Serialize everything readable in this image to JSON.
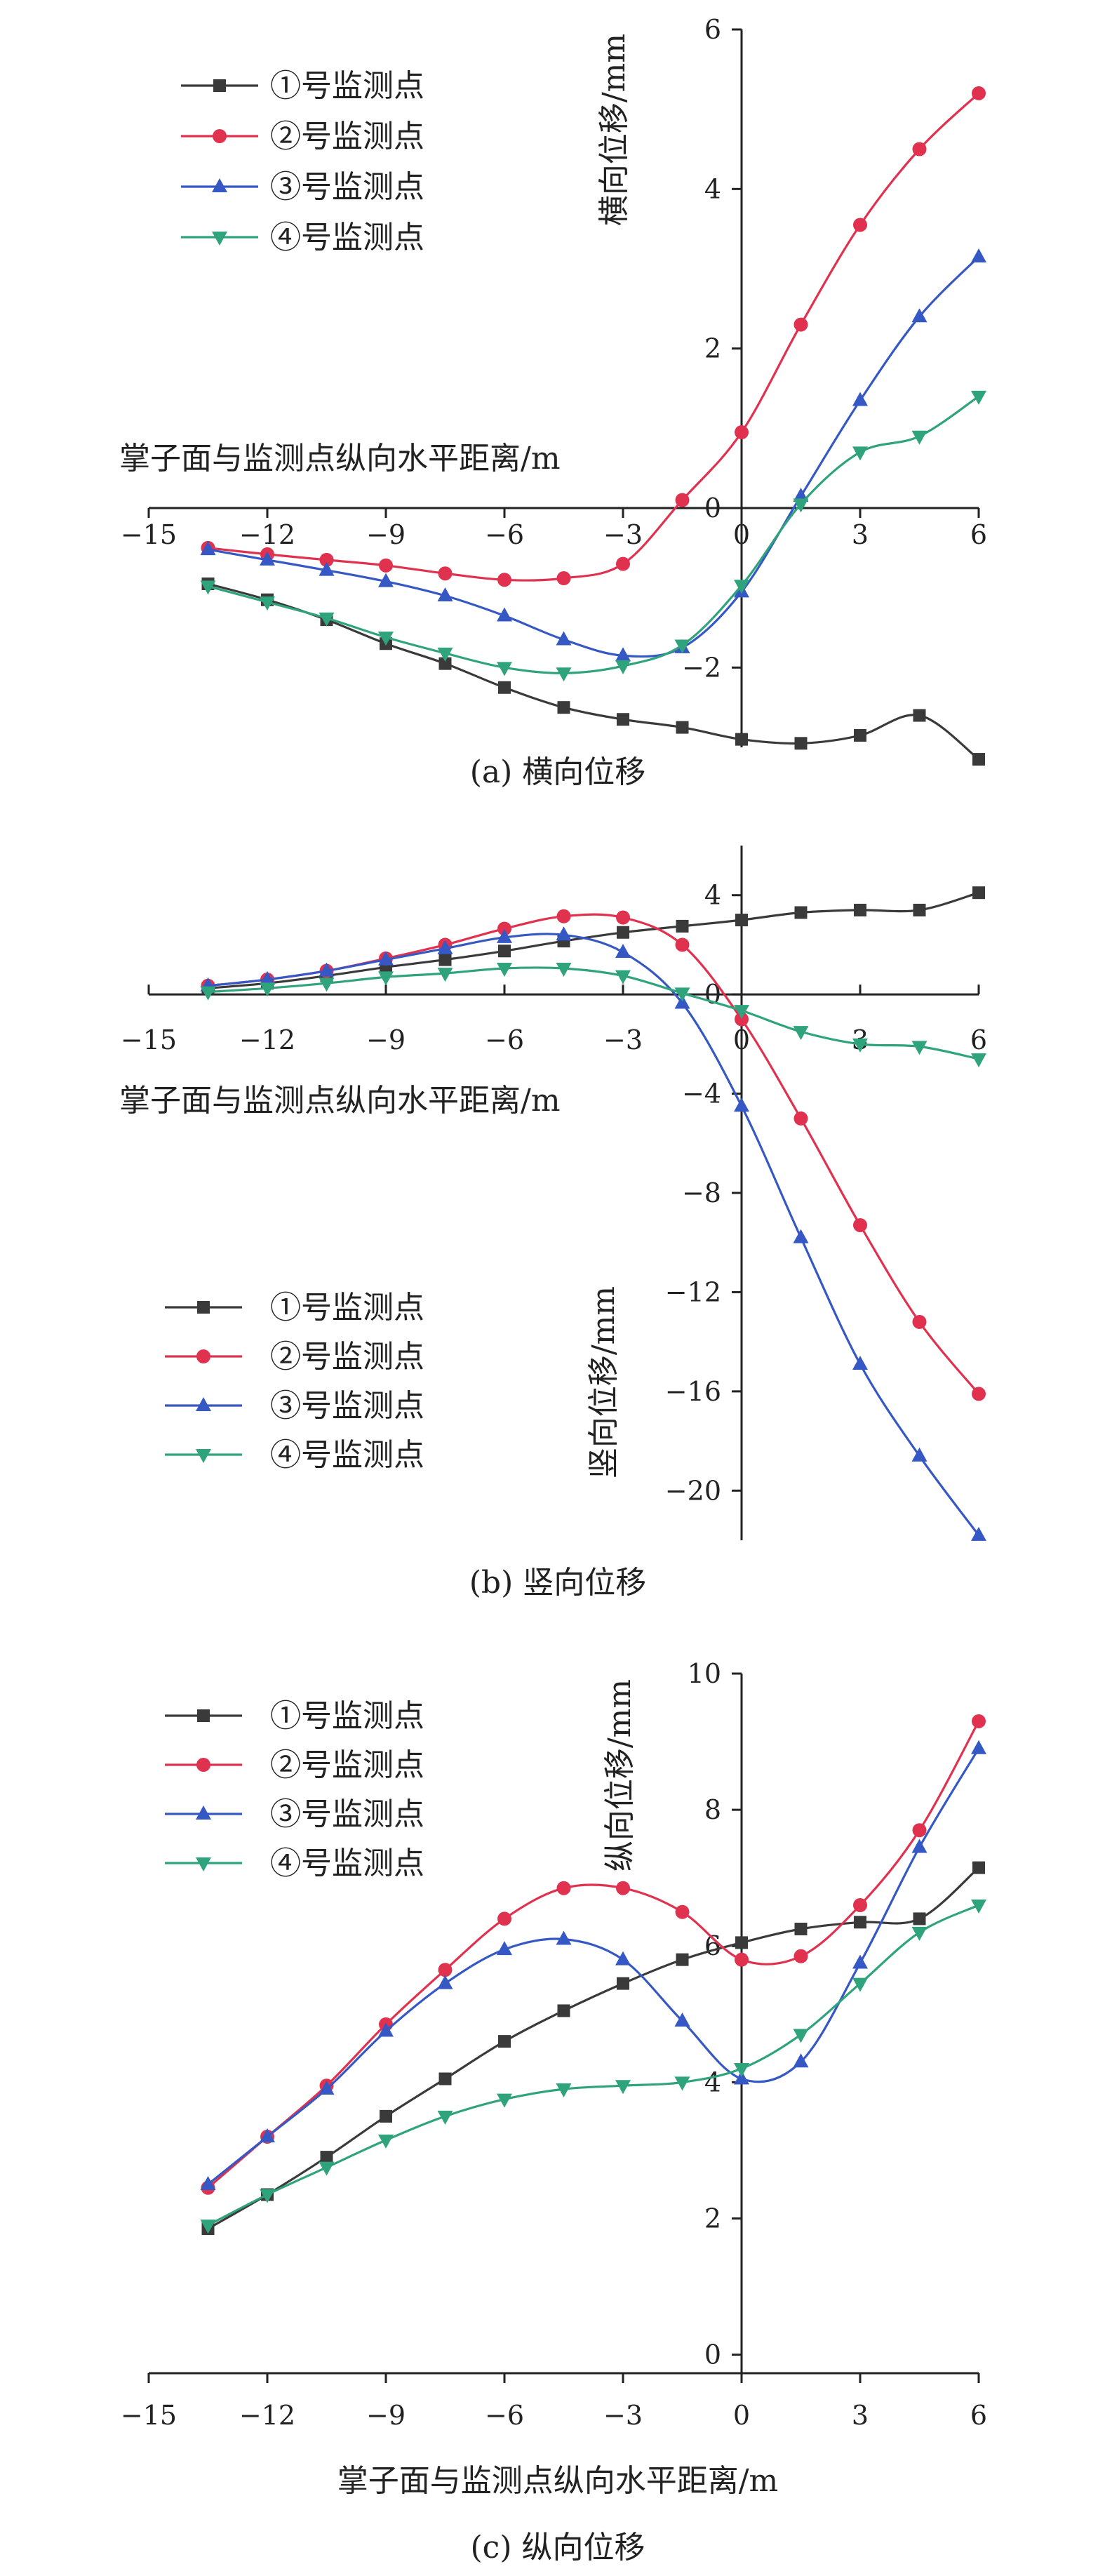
{
  "colors": {
    "series1": "#3a3a3a",
    "series2": "#e0314f",
    "series3": "#3558c4",
    "series4": "#2fa37c"
  },
  "chart_data": [
    {
      "type": "line",
      "caption": "(a) 横向位移",
      "xlabel": "掌子面与监测点纵向水平距离/m",
      "ylabel": "横向位移/mm",
      "xlim": [
        -15,
        6
      ],
      "ylim": [
        -3,
        6
      ],
      "xticks": [
        -15,
        -12,
        -9,
        -6,
        -3,
        0,
        3,
        6
      ],
      "yticks": [
        -2,
        0,
        2,
        4,
        6
      ],
      "legend_position": "top-left",
      "x": [
        -13.5,
        -12,
        -10.5,
        -9,
        -7.5,
        -6,
        -4.5,
        -3,
        -1.5,
        0,
        1.5,
        3,
        4.5,
        6
      ],
      "series": [
        {
          "name": "①号监测点",
          "marker": "square",
          "values": [
            -0.95,
            -1.15,
            -1.4,
            -1.7,
            -1.95,
            -2.25,
            -2.5,
            -2.65,
            -2.75,
            -2.9,
            -2.95,
            -2.85,
            -2.6,
            -3.15
          ]
        },
        {
          "name": "②号监测点",
          "marker": "circle",
          "values": [
            -0.5,
            -0.58,
            -0.65,
            -0.72,
            -0.82,
            -0.9,
            -0.88,
            -0.7,
            0.1,
            0.95,
            2.3,
            3.55,
            4.5,
            5.2
          ]
        },
        {
          "name": "③号监测点",
          "marker": "triangle-up",
          "values": [
            -0.52,
            -0.65,
            -0.78,
            -0.92,
            -1.1,
            -1.35,
            -1.65,
            -1.85,
            -1.75,
            -1.05,
            0.15,
            1.35,
            2.4,
            3.15
          ]
        },
        {
          "name": "④号监测点",
          "marker": "triangle-down",
          "values": [
            -0.98,
            -1.18,
            -1.38,
            -1.62,
            -1.82,
            -2.0,
            -2.07,
            -1.98,
            -1.72,
            -0.97,
            0.05,
            0.7,
            0.9,
            1.4
          ]
        }
      ]
    },
    {
      "type": "line",
      "caption": "(b) 竖向位移",
      "xlabel": "掌子面与监测点纵向水平距离/m",
      "ylabel": "竖向位移/mm",
      "xlim": [
        -15,
        6
      ],
      "ylim": [
        -22,
        6
      ],
      "xticks": [
        -15,
        -12,
        -9,
        -6,
        -3,
        0,
        3,
        6
      ],
      "yticks": [
        -20,
        -16,
        -12,
        -8,
        -4,
        0,
        4
      ],
      "legend_position": "bottom-left",
      "x": [
        -13.5,
        -12,
        -10.5,
        -9,
        -7.5,
        -6,
        -4.5,
        -3,
        -1.5,
        0,
        1.5,
        3,
        4.5,
        6
      ],
      "series": [
        {
          "name": "①号监测点",
          "marker": "square",
          "values": [
            0.25,
            0.45,
            0.75,
            1.1,
            1.4,
            1.75,
            2.15,
            2.5,
            2.75,
            3.0,
            3.3,
            3.4,
            3.4,
            4.1
          ]
        },
        {
          "name": "②号监测点",
          "marker": "circle",
          "values": [
            0.35,
            0.6,
            0.95,
            1.45,
            2.0,
            2.65,
            3.15,
            3.1,
            2.0,
            -1.0,
            -5.0,
            -9.3,
            -13.2,
            -16.1
          ]
        },
        {
          "name": "③号监测点",
          "marker": "triangle-up",
          "values": [
            0.35,
            0.6,
            0.95,
            1.4,
            1.85,
            2.3,
            2.4,
            1.7,
            -0.35,
            -4.5,
            -9.8,
            -14.9,
            -18.6,
            -21.8
          ]
        },
        {
          "name": "④号监测点",
          "marker": "triangle-down",
          "values": [
            0.1,
            0.25,
            0.45,
            0.7,
            0.85,
            1.05,
            1.05,
            0.75,
            0.05,
            -0.65,
            -1.5,
            -2.0,
            -2.1,
            -2.6
          ]
        }
      ]
    },
    {
      "type": "line",
      "caption": "(c) 纵向位移",
      "xlabel": "掌子面与监测点纵向水平距离/m",
      "ylabel": "纵向位移/mm",
      "xlim": [
        -15,
        6
      ],
      "ylim": [
        -0.2,
        10
      ],
      "xticks": [
        -15,
        -12,
        -9,
        -6,
        -3,
        0,
        3,
        6
      ],
      "yticks": [
        0,
        2,
        4,
        6,
        8,
        10
      ],
      "legend_position": "top-left",
      "x": [
        -13.5,
        -12,
        -10.5,
        -9,
        -7.5,
        -6,
        -4.5,
        -3,
        -1.5,
        0,
        1.5,
        3,
        4.5,
        6
      ],
      "series": [
        {
          "name": "①号监测点",
          "marker": "square",
          "values": [
            1.85,
            2.35,
            2.9,
            3.5,
            4.05,
            4.6,
            5.05,
            5.45,
            5.8,
            6.05,
            6.25,
            6.35,
            6.4,
            7.15
          ]
        },
        {
          "name": "②号监测点",
          "marker": "circle",
          "values": [
            2.45,
            3.2,
            3.95,
            4.85,
            5.65,
            6.4,
            6.85,
            6.85,
            6.5,
            5.8,
            5.85,
            6.6,
            7.7,
            9.3
          ]
        },
        {
          "name": "③号监测点",
          "marker": "triangle-up",
          "values": [
            2.5,
            3.2,
            3.9,
            4.75,
            5.45,
            5.95,
            6.1,
            5.8,
            4.9,
            4.05,
            4.3,
            5.75,
            7.45,
            8.9
          ]
        },
        {
          "name": "④号监测点",
          "marker": "triangle-down",
          "values": [
            1.9,
            2.35,
            2.75,
            3.15,
            3.5,
            3.75,
            3.9,
            3.95,
            4.0,
            4.2,
            4.7,
            5.45,
            6.2,
            6.6
          ]
        }
      ]
    }
  ]
}
